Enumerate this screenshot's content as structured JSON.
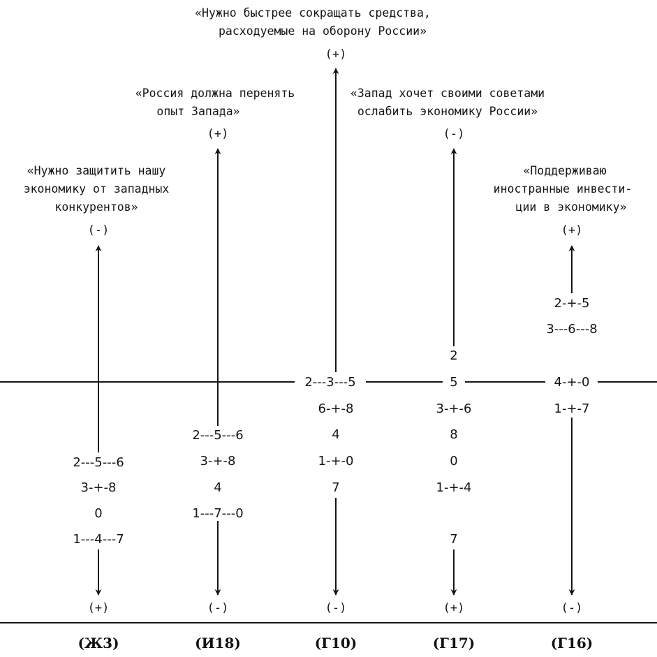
{
  "columns": [
    {
      "code": "(Ж3)",
      "statement": [
        "«Нужно защитить нашу",
        "экономику от западных",
        "конкурентов»"
      ],
      "top_sign": "(-)",
      "bottom_sign": "(+)",
      "clusters": [
        "2---5---6",
        "3-+-8",
        "0",
        "1---4---7"
      ]
    },
    {
      "code": "(И18)",
      "statement": [
        "«Россия должна перенять",
        "опыт Запада»"
      ],
      "top_sign": "(+)",
      "bottom_sign": "(-)",
      "clusters": [
        "2---5---6",
        "3-+-8",
        "4",
        "1---7---0"
      ]
    },
    {
      "code": "(Г10)",
      "statement": [
        "«Нужно быстрее сокращать средства,",
        "расходуемые на оборону России»"
      ],
      "top_sign": "(+)",
      "bottom_sign": "(-)",
      "clusters": [
        "2---3---5",
        "6-+-8",
        "4",
        "1-+-0",
        "7"
      ]
    },
    {
      "code": "(Г17)",
      "statement": [
        "«Запад хочет своими советами",
        "ослабить экономику России»"
      ],
      "top_sign": "(-)",
      "bottom_sign": "(+)",
      "clusters": [
        "2",
        "5",
        "3-+-6",
        "8",
        "0",
        "1-+-4",
        "7"
      ]
    },
    {
      "code": "(Г16)",
      "statement": [
        "«Поддерживаю",
        "иностранные инвести-",
        "ции в экономику»"
      ],
      "top_sign": "(+)",
      "bottom_sign": "(-)",
      "clusters": [
        "2-+-5",
        "3---6---8",
        "4-+-0",
        "1-+-7"
      ]
    }
  ]
}
